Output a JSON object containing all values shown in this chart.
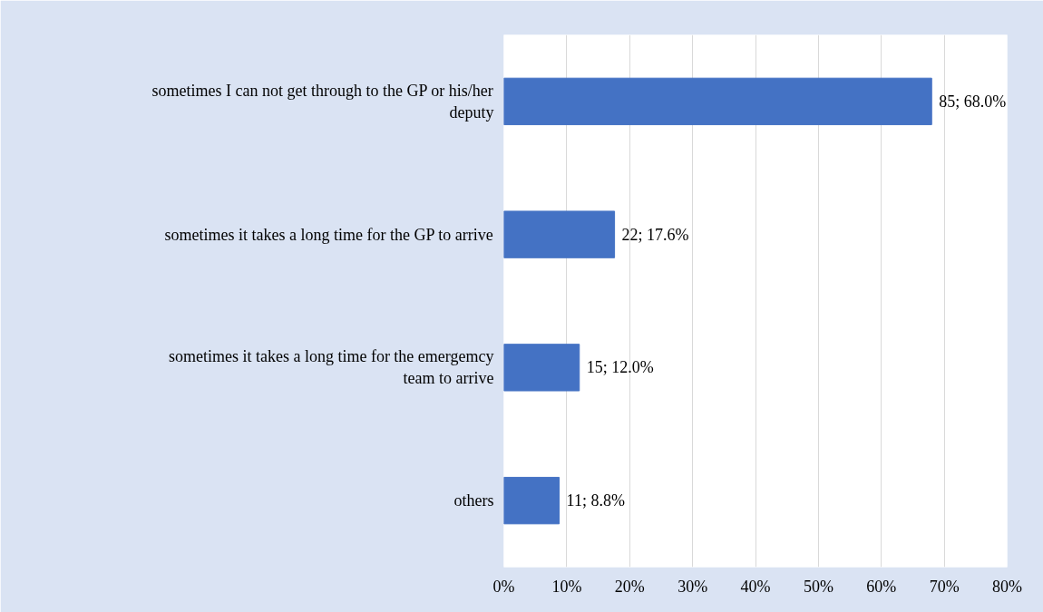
{
  "chart_data": {
    "type": "bar",
    "orientation": "horizontal",
    "categories": [
      "sometimes I can not get through to the GP or his/her deputy",
      "sometimes it takes a long time for the GP to arrive",
      "sometimes it takes a long time for the emergemcy team to arrive",
      "others"
    ],
    "values": [
      68.0,
      17.6,
      12.0,
      8.8
    ],
    "value_labels": [
      "85; 68.0%",
      "22; 17.6%",
      "15; 12.0%",
      "11; 8.8%"
    ],
    "color": "#4472c4",
    "xlim": [
      0,
      80
    ],
    "xticks": [
      {
        "value": 0,
        "label": "0%"
      },
      {
        "value": 10,
        "label": "10%"
      },
      {
        "value": 20,
        "label": "20%"
      },
      {
        "value": 30,
        "label": "30%"
      },
      {
        "value": 40,
        "label": "40%"
      },
      {
        "value": 50,
        "label": "50%"
      },
      {
        "value": 60,
        "label": "60%"
      },
      {
        "value": 70,
        "label": "70%"
      },
      {
        "value": 80,
        "label": "80%"
      }
    ],
    "grid": "x"
  }
}
